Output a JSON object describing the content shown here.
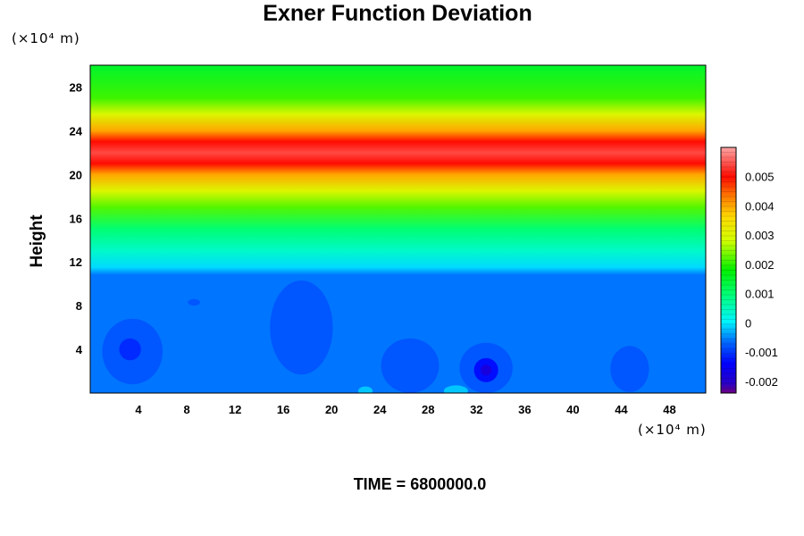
{
  "chart_data": {
    "type": "heatmap",
    "title": "Exner Function Deviation",
    "xlabel": "",
    "ylabel": "Height",
    "x_unit": "(×10⁴ m)",
    "y_unit": "(×10⁴ m)",
    "xlim": [
      0,
      51
    ],
    "ylim": [
      0,
      30
    ],
    "x_ticks": [
      4,
      8,
      12,
      16,
      20,
      24,
      28,
      32,
      36,
      40,
      44,
      48
    ],
    "y_ticks": [
      4,
      8,
      12,
      16,
      20,
      24,
      28
    ],
    "colorbar": {
      "range": [
        -0.0024,
        0.006
      ],
      "tick_values": [
        0.005,
        0.004,
        0.003,
        0.002,
        0.001,
        0,
        -0.001,
        -0.002
      ],
      "tick_labels": [
        "0.005",
        "0.004",
        "0.003",
        "0.002",
        "0.001",
        "0",
        "-0.001",
        "-0.002"
      ]
    },
    "vertical_profile": [
      {
        "y": 0,
        "value": -0.0006
      },
      {
        "y": 10.8,
        "value": -0.0006
      },
      {
        "y": 11.5,
        "value": -0.0001
      },
      {
        "y": 13,
        "value": 0.0004
      },
      {
        "y": 15,
        "value": 0.001
      },
      {
        "y": 17,
        "value": 0.0022
      },
      {
        "y": 18.5,
        "value": 0.003
      },
      {
        "y": 20,
        "value": 0.004
      },
      {
        "y": 21,
        "value": 0.005
      },
      {
        "y": 22,
        "value": 0.0054
      },
      {
        "y": 23,
        "value": 0.005
      },
      {
        "y": 24,
        "value": 0.004
      },
      {
        "y": 25.5,
        "value": 0.003
      },
      {
        "y": 27,
        "value": 0.0021
      },
      {
        "y": 30,
        "value": 0.0015
      }
    ],
    "anomalies": [
      {
        "x": 3.5,
        "y": 3.8,
        "rx": 2.5,
        "ry": 3.0,
        "value": -0.0008
      },
      {
        "x": 3.3,
        "y": 4.0,
        "rx": 0.9,
        "ry": 1.0,
        "value": -0.0011
      },
      {
        "x": 17.5,
        "y": 6.0,
        "rx": 2.6,
        "ry": 4.3,
        "value": -0.0008
      },
      {
        "x": 26.5,
        "y": 2.5,
        "rx": 2.4,
        "ry": 2.5,
        "value": -0.0008
      },
      {
        "x": 32.8,
        "y": 2.3,
        "rx": 2.2,
        "ry": 2.3,
        "value": -0.0008
      },
      {
        "x": 32.8,
        "y": 2.1,
        "rx": 1.0,
        "ry": 1.1,
        "value": -0.0013
      },
      {
        "x": 32.8,
        "y": 2.1,
        "rx": 0.45,
        "ry": 0.5,
        "value": -0.0018
      },
      {
        "x": 44.7,
        "y": 2.2,
        "rx": 1.6,
        "ry": 2.1,
        "value": -0.0008
      },
      {
        "x": 8.6,
        "y": 8.3,
        "rx": 0.5,
        "ry": 0.3,
        "value": -0.0008
      },
      {
        "x": 22.8,
        "y": 0.2,
        "rx": 0.6,
        "ry": 0.4,
        "value": -0.0002
      },
      {
        "x": 30.3,
        "y": 0.2,
        "rx": 1.0,
        "ry": 0.5,
        "value": -0.0002
      }
    ]
  },
  "footer": {
    "time_label": "TIME = 6800000.0"
  }
}
